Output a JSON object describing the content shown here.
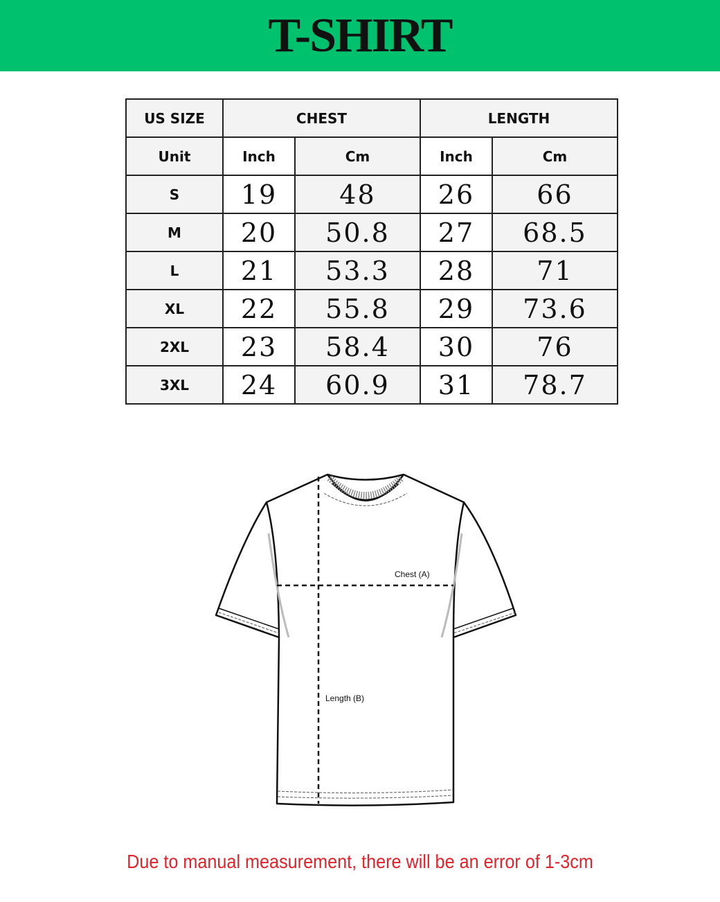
{
  "title": "T-SHIRT",
  "table": {
    "header1": [
      "US SIZE",
      "CHEST",
      "LENGTH"
    ],
    "header2": [
      "Unit",
      "Inch",
      "Cm",
      "Inch",
      "Cm"
    ],
    "rows": [
      [
        "S",
        "19",
        "48",
        "26",
        "66"
      ],
      [
        "M",
        "20",
        "50.8",
        "27",
        "68.5"
      ],
      [
        "L",
        "21",
        "53.3",
        "28",
        "71"
      ],
      [
        "XL",
        "22",
        "55.8",
        "29",
        "73.6"
      ],
      [
        "2XL",
        "23",
        "58.4",
        "30",
        "76"
      ],
      [
        "3XL",
        "24",
        "60.9",
        "31",
        "78.7"
      ]
    ]
  },
  "diagram": {
    "chest_label": "Chest (A)",
    "length_label": "Length (B)"
  },
  "note": "Due to manual measurement, there will be an error of 1-3cm",
  "colors": {
    "banner": "#00c16e",
    "note": "#e3232b"
  }
}
